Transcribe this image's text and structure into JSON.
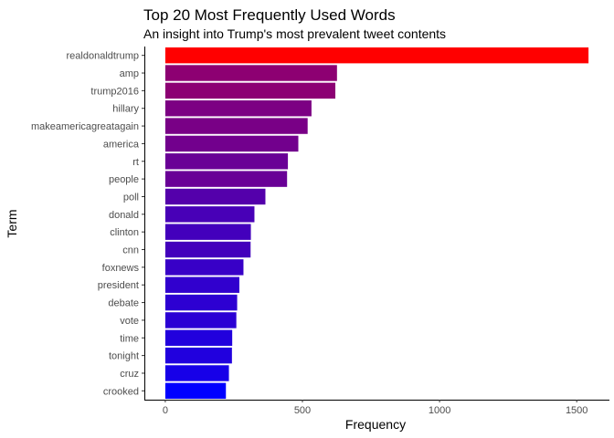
{
  "chart_data": {
    "type": "bar",
    "orientation": "horizontal",
    "title": "Top 20 Most Frequently Used Words",
    "subtitle": "An insight into Trump's most prevalent tweet contents",
    "xlabel": "Frequency",
    "ylabel": "Term",
    "xlim": [
      0,
      1600
    ],
    "xticks": [
      0,
      500,
      1000,
      1500
    ],
    "grid": false,
    "color_low": "#0000ff",
    "color_high": "#ff0000",
    "categories": [
      "realdonaldtrump",
      "amp",
      "trump2016",
      "hillary",
      "makeamericagreatagain",
      "america",
      "rt",
      "people",
      "poll",
      "donald",
      "clinton",
      "cnn",
      "foxnews",
      "president",
      "debate",
      "vote",
      "time",
      "tonight",
      "cruz",
      "crooked"
    ],
    "values": [
      1543,
      626,
      620,
      533,
      519,
      485,
      447,
      444,
      365,
      325,
      312,
      311,
      285,
      270,
      262,
      259,
      244,
      243,
      232,
      221
    ]
  }
}
